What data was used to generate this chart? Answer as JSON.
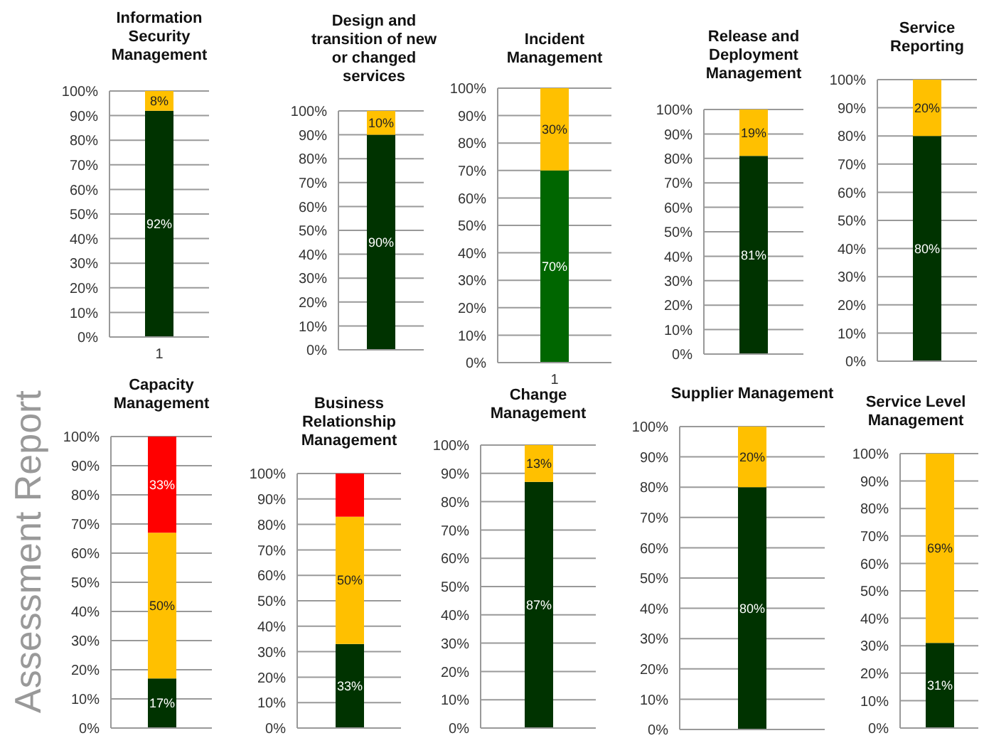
{
  "chart_data": [
    {
      "type": "bar",
      "title": "Information Security Management",
      "categories": [
        "1"
      ],
      "stacked": true,
      "grid": "y",
      "ylim": [
        0,
        100
      ],
      "yticks": [
        {
          "value": 0,
          "label": "0%"
        },
        {
          "value": 10,
          "label": "10%"
        },
        {
          "value": 20,
          "label": "20%"
        },
        {
          "value": 30,
          "label": "30%"
        },
        {
          "value": 40,
          "label": "40%"
        },
        {
          "value": 50,
          "label": "50%"
        },
        {
          "value": 60,
          "label": "60%"
        },
        {
          "value": 70,
          "label": "70%"
        },
        {
          "value": 80,
          "label": "80%"
        },
        {
          "value": 90,
          "label": "90%"
        },
        {
          "value": 100,
          "label": "100%"
        }
      ],
      "series": [
        {
          "color": "#003300",
          "values": [
            92
          ],
          "value_labels": [
            "92%"
          ]
        },
        {
          "color": "#ffc000",
          "values": [
            8
          ],
          "value_labels": [
            "8%"
          ]
        }
      ]
    },
    {
      "type": "bar",
      "title": "Design and transition of new or changed services",
      "categories": [
        null
      ],
      "stacked": true,
      "grid": "y",
      "ylim": [
        0,
        100
      ],
      "yticks": [
        {
          "value": 0,
          "label": "0%"
        },
        {
          "value": 10,
          "label": "10%"
        },
        {
          "value": 20,
          "label": "20%"
        },
        {
          "value": 30,
          "label": "30%"
        },
        {
          "value": 40,
          "label": "40%"
        },
        {
          "value": 50,
          "label": "50%"
        },
        {
          "value": 60,
          "label": "60%"
        },
        {
          "value": 70,
          "label": "70%"
        },
        {
          "value": 80,
          "label": "80%"
        },
        {
          "value": 90,
          "label": "90%"
        },
        {
          "value": 100,
          "label": "100%"
        }
      ],
      "series": [
        {
          "color": "#003300",
          "values": [
            90
          ],
          "value_labels": [
            "90%"
          ]
        },
        {
          "color": "#ffc000",
          "values": [
            10
          ],
          "value_labels": [
            "10%"
          ]
        }
      ]
    },
    {
      "type": "bar",
      "title": "Incident Management",
      "categories": [
        "1"
      ],
      "stacked": true,
      "grid": "y",
      "ylim": [
        0,
        100
      ],
      "yticks": [
        {
          "value": 0,
          "label": "0%"
        },
        {
          "value": 10,
          "label": "10%"
        },
        {
          "value": 20,
          "label": "20%"
        },
        {
          "value": 30,
          "label": "30%"
        },
        {
          "value": 40,
          "label": "40%"
        },
        {
          "value": 50,
          "label": "50%"
        },
        {
          "value": 60,
          "label": "60%"
        },
        {
          "value": 70,
          "label": "70%"
        },
        {
          "value": 80,
          "label": "80%"
        },
        {
          "value": 90,
          "label": "90%"
        },
        {
          "value": 100,
          "label": "100%"
        }
      ],
      "series": [
        {
          "color": "#006600",
          "values": [
            70
          ],
          "value_labels": [
            "70%"
          ]
        },
        {
          "color": "#ffc000",
          "values": [
            30
          ],
          "value_labels": [
            "30%"
          ]
        }
      ]
    },
    {
      "type": "bar",
      "title": "Release and Deployment Management",
      "categories": [
        null
      ],
      "stacked": true,
      "grid": "y",
      "ylim": [
        0,
        100
      ],
      "yticks": [
        {
          "value": 0,
          "label": "0%"
        },
        {
          "value": 10,
          "label": "10%"
        },
        {
          "value": 20,
          "label": "20%"
        },
        {
          "value": 30,
          "label": "30%"
        },
        {
          "value": 40,
          "label": "40%"
        },
        {
          "value": 50,
          "label": "50%"
        },
        {
          "value": 60,
          "label": "60%"
        },
        {
          "value": 70,
          "label": "70%"
        },
        {
          "value": 80,
          "label": "80%"
        },
        {
          "value": 90,
          "label": "90%"
        },
        {
          "value": 100,
          "label": "100%"
        }
      ],
      "series": [
        {
          "color": "#003300",
          "values": [
            81
          ],
          "value_labels": [
            "81%"
          ]
        },
        {
          "color": "#ffc000",
          "values": [
            19
          ],
          "value_labels": [
            "19%"
          ]
        }
      ]
    },
    {
      "type": "bar",
      "title": "Service Reporting",
      "categories": [
        null
      ],
      "stacked": true,
      "grid": "y",
      "ylim": [
        0,
        100
      ],
      "yticks": [
        {
          "value": 0,
          "label": "0%"
        },
        {
          "value": 10,
          "label": "10%"
        },
        {
          "value": 20,
          "label": "20%"
        },
        {
          "value": 30,
          "label": "30%"
        },
        {
          "value": 40,
          "label": "40%"
        },
        {
          "value": 50,
          "label": "50%"
        },
        {
          "value": 60,
          "label": "60%"
        },
        {
          "value": 70,
          "label": "70%"
        },
        {
          "value": 80,
          "label": "80%"
        },
        {
          "value": 90,
          "label": "90%"
        },
        {
          "value": 100,
          "label": "100%"
        }
      ],
      "series": [
        {
          "color": "#003300",
          "values": [
            80
          ],
          "value_labels": [
            "80%"
          ]
        },
        {
          "color": "#ffc000",
          "values": [
            20
          ],
          "value_labels": [
            "20%"
          ]
        }
      ]
    },
    {
      "type": "bar",
      "title": "Capacity Management",
      "annotations": [
        "Assessment Report"
      ],
      "categories": [
        null
      ],
      "stacked": true,
      "grid": "y",
      "ylim": [
        0,
        100
      ],
      "yticks": [
        {
          "value": 0,
          "label": "0%"
        },
        {
          "value": 10,
          "label": "10%"
        },
        {
          "value": 20,
          "label": "20%"
        },
        {
          "value": 30,
          "label": "30%"
        },
        {
          "value": 40,
          "label": "40%"
        },
        {
          "value": 50,
          "label": "50%"
        },
        {
          "value": 60,
          "label": "60%"
        },
        {
          "value": 70,
          "label": "70%"
        },
        {
          "value": 80,
          "label": "80%"
        },
        {
          "value": 90,
          "label": "90%"
        },
        {
          "value": 100,
          "label": "100%"
        }
      ],
      "series": [
        {
          "color": "#003300",
          "values": [
            17
          ],
          "value_labels": [
            "17%"
          ]
        },
        {
          "color": "#ffc000",
          "values": [
            50
          ],
          "value_labels": [
            "50%"
          ]
        },
        {
          "color": "#ff0000",
          "values": [
            33
          ],
          "value_labels": [
            "33%"
          ]
        }
      ]
    },
    {
      "type": "bar",
      "title": "Business Relationship Management",
      "categories": [
        null
      ],
      "stacked": true,
      "grid": "y",
      "ylim": [
        0,
        100
      ],
      "yticks": [
        {
          "value": 0,
          "label": "0%"
        },
        {
          "value": 10,
          "label": "10%"
        },
        {
          "value": 20,
          "label": "20%"
        },
        {
          "value": 30,
          "label": "30%"
        },
        {
          "value": 40,
          "label": "40%"
        },
        {
          "value": 50,
          "label": "50%"
        },
        {
          "value": 60,
          "label": "60%"
        },
        {
          "value": 70,
          "label": "70%"
        },
        {
          "value": 80,
          "label": "80%"
        },
        {
          "value": 90,
          "label": "90%"
        },
        {
          "value": 100,
          "label": "100%"
        }
      ],
      "series": [
        {
          "color": "#003300",
          "values": [
            33
          ],
          "value_labels": [
            "33%"
          ]
        },
        {
          "color": "#ffc000",
          "values": [
            50
          ],
          "value_labels": [
            "50%"
          ]
        },
        {
          "color": "#ff0000",
          "values": [
            17
          ],
          "value_labels": [
            null
          ]
        }
      ]
    },
    {
      "type": "bar",
      "title": "Change Management",
      "categories": [
        null
      ],
      "stacked": true,
      "grid": "y",
      "ylim": [
        0,
        100
      ],
      "yticks": [
        {
          "value": 0,
          "label": "0%"
        },
        {
          "value": 10,
          "label": "10%"
        },
        {
          "value": 20,
          "label": "20%"
        },
        {
          "value": 30,
          "label": "30%"
        },
        {
          "value": 40,
          "label": "40%"
        },
        {
          "value": 50,
          "label": "50%"
        },
        {
          "value": 60,
          "label": "60%"
        },
        {
          "value": 70,
          "label": "70%"
        },
        {
          "value": 80,
          "label": "80%"
        },
        {
          "value": 90,
          "label": "90%"
        },
        {
          "value": 100,
          "label": "100%"
        }
      ],
      "series": [
        {
          "color": "#003300",
          "values": [
            87
          ],
          "value_labels": [
            "87%"
          ]
        },
        {
          "color": "#ffc000",
          "values": [
            13
          ],
          "value_labels": [
            "13%"
          ]
        }
      ]
    },
    {
      "type": "bar",
      "title": "Supplier Management",
      "categories": [
        null
      ],
      "stacked": true,
      "grid": "y",
      "ylim": [
        0,
        100
      ],
      "yticks": [
        {
          "value": 0,
          "label": "0%"
        },
        {
          "value": 10,
          "label": "10%"
        },
        {
          "value": 20,
          "label": "20%"
        },
        {
          "value": 30,
          "label": "30%"
        },
        {
          "value": 40,
          "label": "40%"
        },
        {
          "value": 50,
          "label": "50%"
        },
        {
          "value": 60,
          "label": "60%"
        },
        {
          "value": 70,
          "label": "70%"
        },
        {
          "value": 80,
          "label": "80%"
        },
        {
          "value": 90,
          "label": "90%"
        },
        {
          "value": 100,
          "label": "100%"
        }
      ],
      "series": [
        {
          "color": "#003300",
          "values": [
            80
          ],
          "value_labels": [
            "80%"
          ]
        },
        {
          "color": "#ffc000",
          "values": [
            20
          ],
          "value_labels": [
            "20%"
          ]
        }
      ]
    },
    {
      "type": "bar",
      "title": "Service Level Management",
      "categories": [
        null
      ],
      "stacked": true,
      "grid": "y",
      "ylim": [
        0,
        100
      ],
      "yticks": [
        {
          "value": 0,
          "label": "0%"
        },
        {
          "value": 10,
          "label": "10%"
        },
        {
          "value": 20,
          "label": "20%"
        },
        {
          "value": 30,
          "label": "30%"
        },
        {
          "value": 40,
          "label": "40%"
        },
        {
          "value": 50,
          "label": "50%"
        },
        {
          "value": 60,
          "label": "60%"
        },
        {
          "value": 70,
          "label": "70%"
        },
        {
          "value": 80,
          "label": "80%"
        },
        {
          "value": 90,
          "label": "90%"
        },
        {
          "value": 100,
          "label": "100%"
        }
      ],
      "series": [
        {
          "color": "#003300",
          "values": [
            31
          ],
          "value_labels": [
            "31%"
          ]
        },
        {
          "color": "#ffc000",
          "values": [
            69
          ],
          "value_labels": [
            "69%"
          ]
        }
      ]
    }
  ]
}
